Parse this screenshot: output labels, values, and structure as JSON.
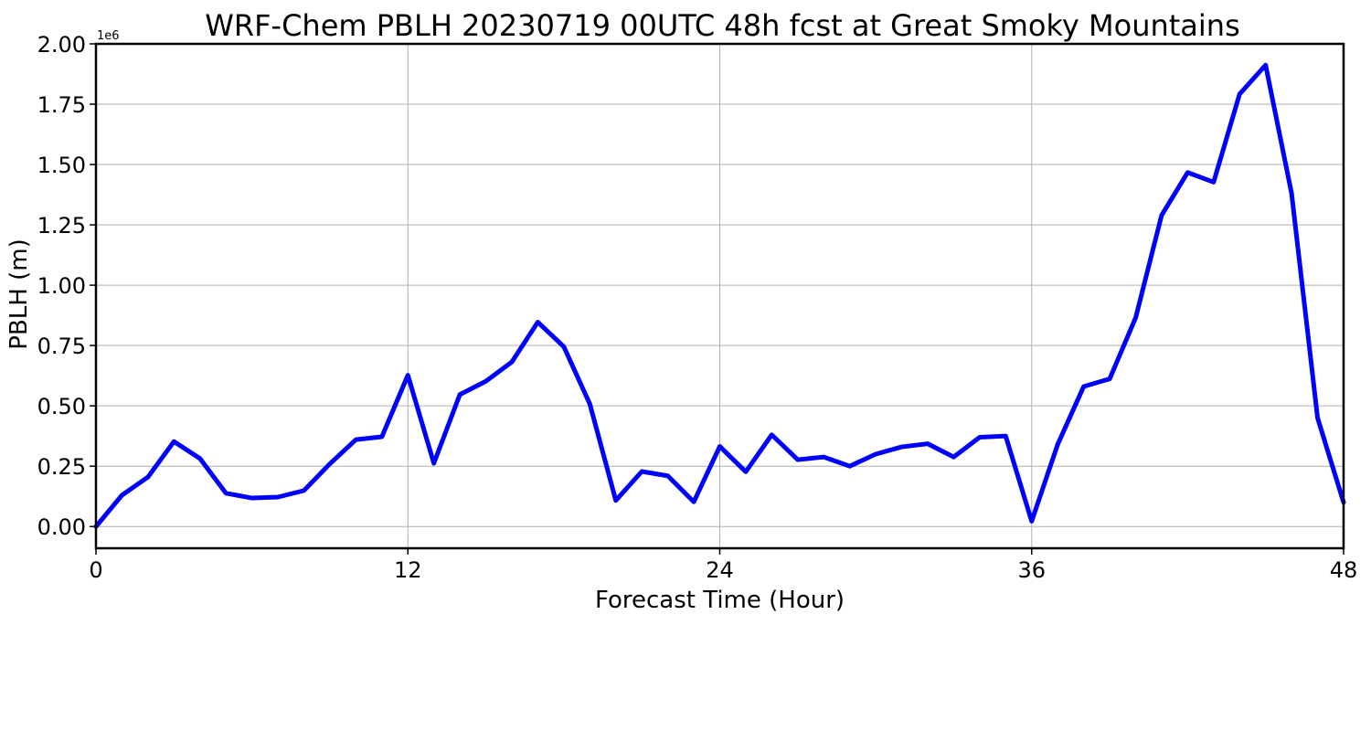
{
  "chart_data": {
    "type": "line",
    "title": "WRF-Chem PBLH  20230719 00UTC 48h fcst at Great Smoky Mountains",
    "xlabel": "Forecast Time (Hour)",
    "ylabel": "PBLH  (m)",
    "y_offset_label": "1e6",
    "xlim": [
      0,
      48
    ],
    "ylim": [
      -0.09,
      2.0
    ],
    "x_ticks": [
      0,
      12,
      24,
      36,
      48
    ],
    "x_tick_labels": [
      "0",
      "12",
      "24",
      "36",
      "48"
    ],
    "y_ticks": [
      0.0,
      0.25,
      0.5,
      0.75,
      1.0,
      1.25,
      1.5,
      1.75,
      2.0
    ],
    "y_tick_labels": [
      "0.00",
      "0.25",
      "0.50",
      "0.75",
      "1.00",
      "1.25",
      "1.50",
      "1.75",
      "2.00"
    ],
    "grid": true,
    "series": [
      {
        "color": "#0000ff",
        "x": [
          0,
          1,
          2,
          3,
          4,
          5,
          6,
          7,
          8,
          9,
          10,
          11,
          12,
          13,
          14,
          15,
          16,
          17,
          18,
          19,
          20,
          21,
          22,
          23,
          24,
          25,
          26,
          27,
          28,
          29,
          30,
          31,
          32,
          33,
          34,
          35,
          36,
          37,
          38,
          39,
          40,
          41,
          42,
          43,
          44,
          45,
          46,
          47,
          48
        ],
        "y": [
          0.0,
          0.13,
          0.205,
          0.352,
          0.282,
          0.138,
          0.118,
          0.122,
          0.149,
          0.26,
          0.36,
          0.372,
          0.627,
          0.262,
          0.547,
          0.602,
          0.682,
          0.847,
          0.745,
          0.508,
          0.108,
          0.228,
          0.21,
          0.102,
          0.332,
          0.227,
          0.38,
          0.277,
          0.288,
          0.25,
          0.3,
          0.33,
          0.343,
          0.288,
          0.37,
          0.375,
          0.022,
          0.34,
          0.58,
          0.612,
          0.865,
          1.29,
          1.467,
          1.427,
          1.792,
          1.912,
          1.38,
          0.45,
          0.1
        ]
      }
    ]
  }
}
